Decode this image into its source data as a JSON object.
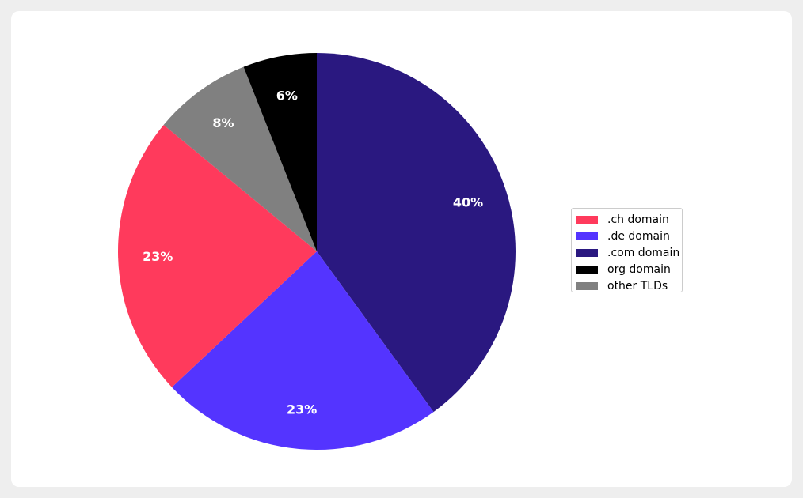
{
  "chart_data": {
    "type": "pie",
    "title": "",
    "slices": [
      {
        "label": ".ch domain",
        "value": 23,
        "pct_label": "23%",
        "color": "#ff3a5c"
      },
      {
        "label": ".de domain",
        "value": 23,
        "pct_label": "23%",
        "color": "#5434ff"
      },
      {
        "label": ".com domain",
        "value": 40,
        "pct_label": "40%",
        "color": "#2a1880"
      },
      {
        "label": "org domain",
        "value": 6,
        "pct_label": "6%",
        "color": "#000000"
      },
      {
        "label": "other TLDs",
        "value": 8,
        "pct_label": "8%",
        "color": "#808080"
      }
    ],
    "legend_position": "right"
  }
}
